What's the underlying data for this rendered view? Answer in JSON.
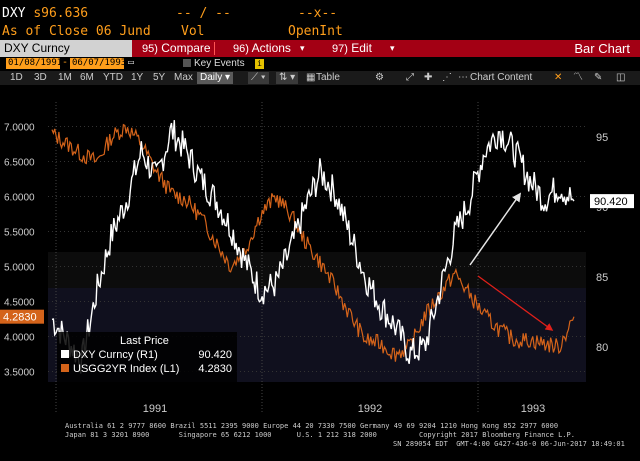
{
  "header": {
    "ticker": "DXY",
    "price_prefix": "s",
    "price": "96.636",
    "mid1": "-- / --",
    "mid2": "--x--",
    "asof": "As of Close 06 Jund",
    "vol": "Vol",
    "openint": "OpenInt"
  },
  "toolbar": {
    "title": "DXY Curncy",
    "compare_num": "95)",
    "compare": "Compare",
    "actions_num": "96)",
    "actions": "Actions",
    "edit_num": "97)",
    "edit": "Edit",
    "chart_type": "Bar Chart"
  },
  "dates": {
    "start": "01/08/1991",
    "end": "06/07/1993",
    "key_events": "Key Events",
    "info": "i"
  },
  "periods": [
    "1D",
    "3D",
    "1M",
    "6M",
    "YTD",
    "1Y",
    "5Y",
    "Max"
  ],
  "frequency": "Daily",
  "table_label": "Table",
  "chart_content": "Chart Content",
  "colors": {
    "accent_orange": "#ff9e1b",
    "toolbar_red": "#a30014",
    "dxy_line": "#ffffff",
    "usgg_line": "#d4631a",
    "arrow_white": "#e6e6e6",
    "arrow_red": "#e0201a"
  },
  "chart_data": {
    "type": "line",
    "left_axis": {
      "ticks": [
        "7.0000",
        "6.5000",
        "6.0000",
        "5.5000",
        "5.0000",
        "4.5000",
        "4.0000",
        "3.5000"
      ],
      "ylim": [
        3.35,
        7.35
      ]
    },
    "right_axis": {
      "ticks": [
        "95",
        "90",
        "85",
        "80"
      ],
      "ylim": [
        77.5,
        97.5
      ]
    },
    "x_labels": [
      "1991",
      "1992",
      "1993"
    ],
    "last_price_title": "Last Price",
    "series": [
      {
        "name": "DXY Curncy (R1)",
        "last": "90.420",
        "axis": "right",
        "color": "#ffffff",
        "values": [
          82,
          80.5,
          79,
          84,
          88,
          90.5,
          94,
          92,
          95.5,
          94,
          92,
          90.5,
          88.5,
          86,
          84,
          84.5,
          87,
          90,
          92.5,
          91,
          88,
          85,
          83,
          81.5,
          79.5,
          80,
          84,
          88,
          90.5,
          94,
          95.5,
          94,
          92,
          90.5,
          91.5,
          90.42
        ]
      },
      {
        "name": "USGG2YR Index (L1)",
        "last": "4.2830",
        "axis": "left",
        "color": "#d4631a",
        "values": [
          6.9,
          6.75,
          6.6,
          6.5,
          6.85,
          7.0,
          6.75,
          6.35,
          6.05,
          5.95,
          5.7,
          5.35,
          5.0,
          5.25,
          5.75,
          6.0,
          5.75,
          5.35,
          5.05,
          4.7,
          4.3,
          3.95,
          3.9,
          3.75,
          3.85,
          4.3,
          4.6,
          4.9,
          4.6,
          4.3,
          4.1,
          3.95,
          3.95,
          3.9,
          3.85,
          4.283
        ]
      }
    ],
    "annotations": [
      "white-uptrend-arrow",
      "red-downtrend-arrow"
    ]
  },
  "footer": {
    "line1": "Australia 61 2 9777 8600 Brazil 5511 2395 9000 Europe 44 20 7330 7500 Germany 49 69 9204 1210 Hong Kong 852 2977 6000",
    "line2": "Japan 81 3 3201 8900       Singapore 65 6212 1000      U.S. 1 212 318 2000          Copyright 2017 Bloomberg Finance L.P.",
    "line3": "SN 289054 EDT  GMT-4:00 G427-436-0 06-Jun-2017 18:49:01"
  }
}
